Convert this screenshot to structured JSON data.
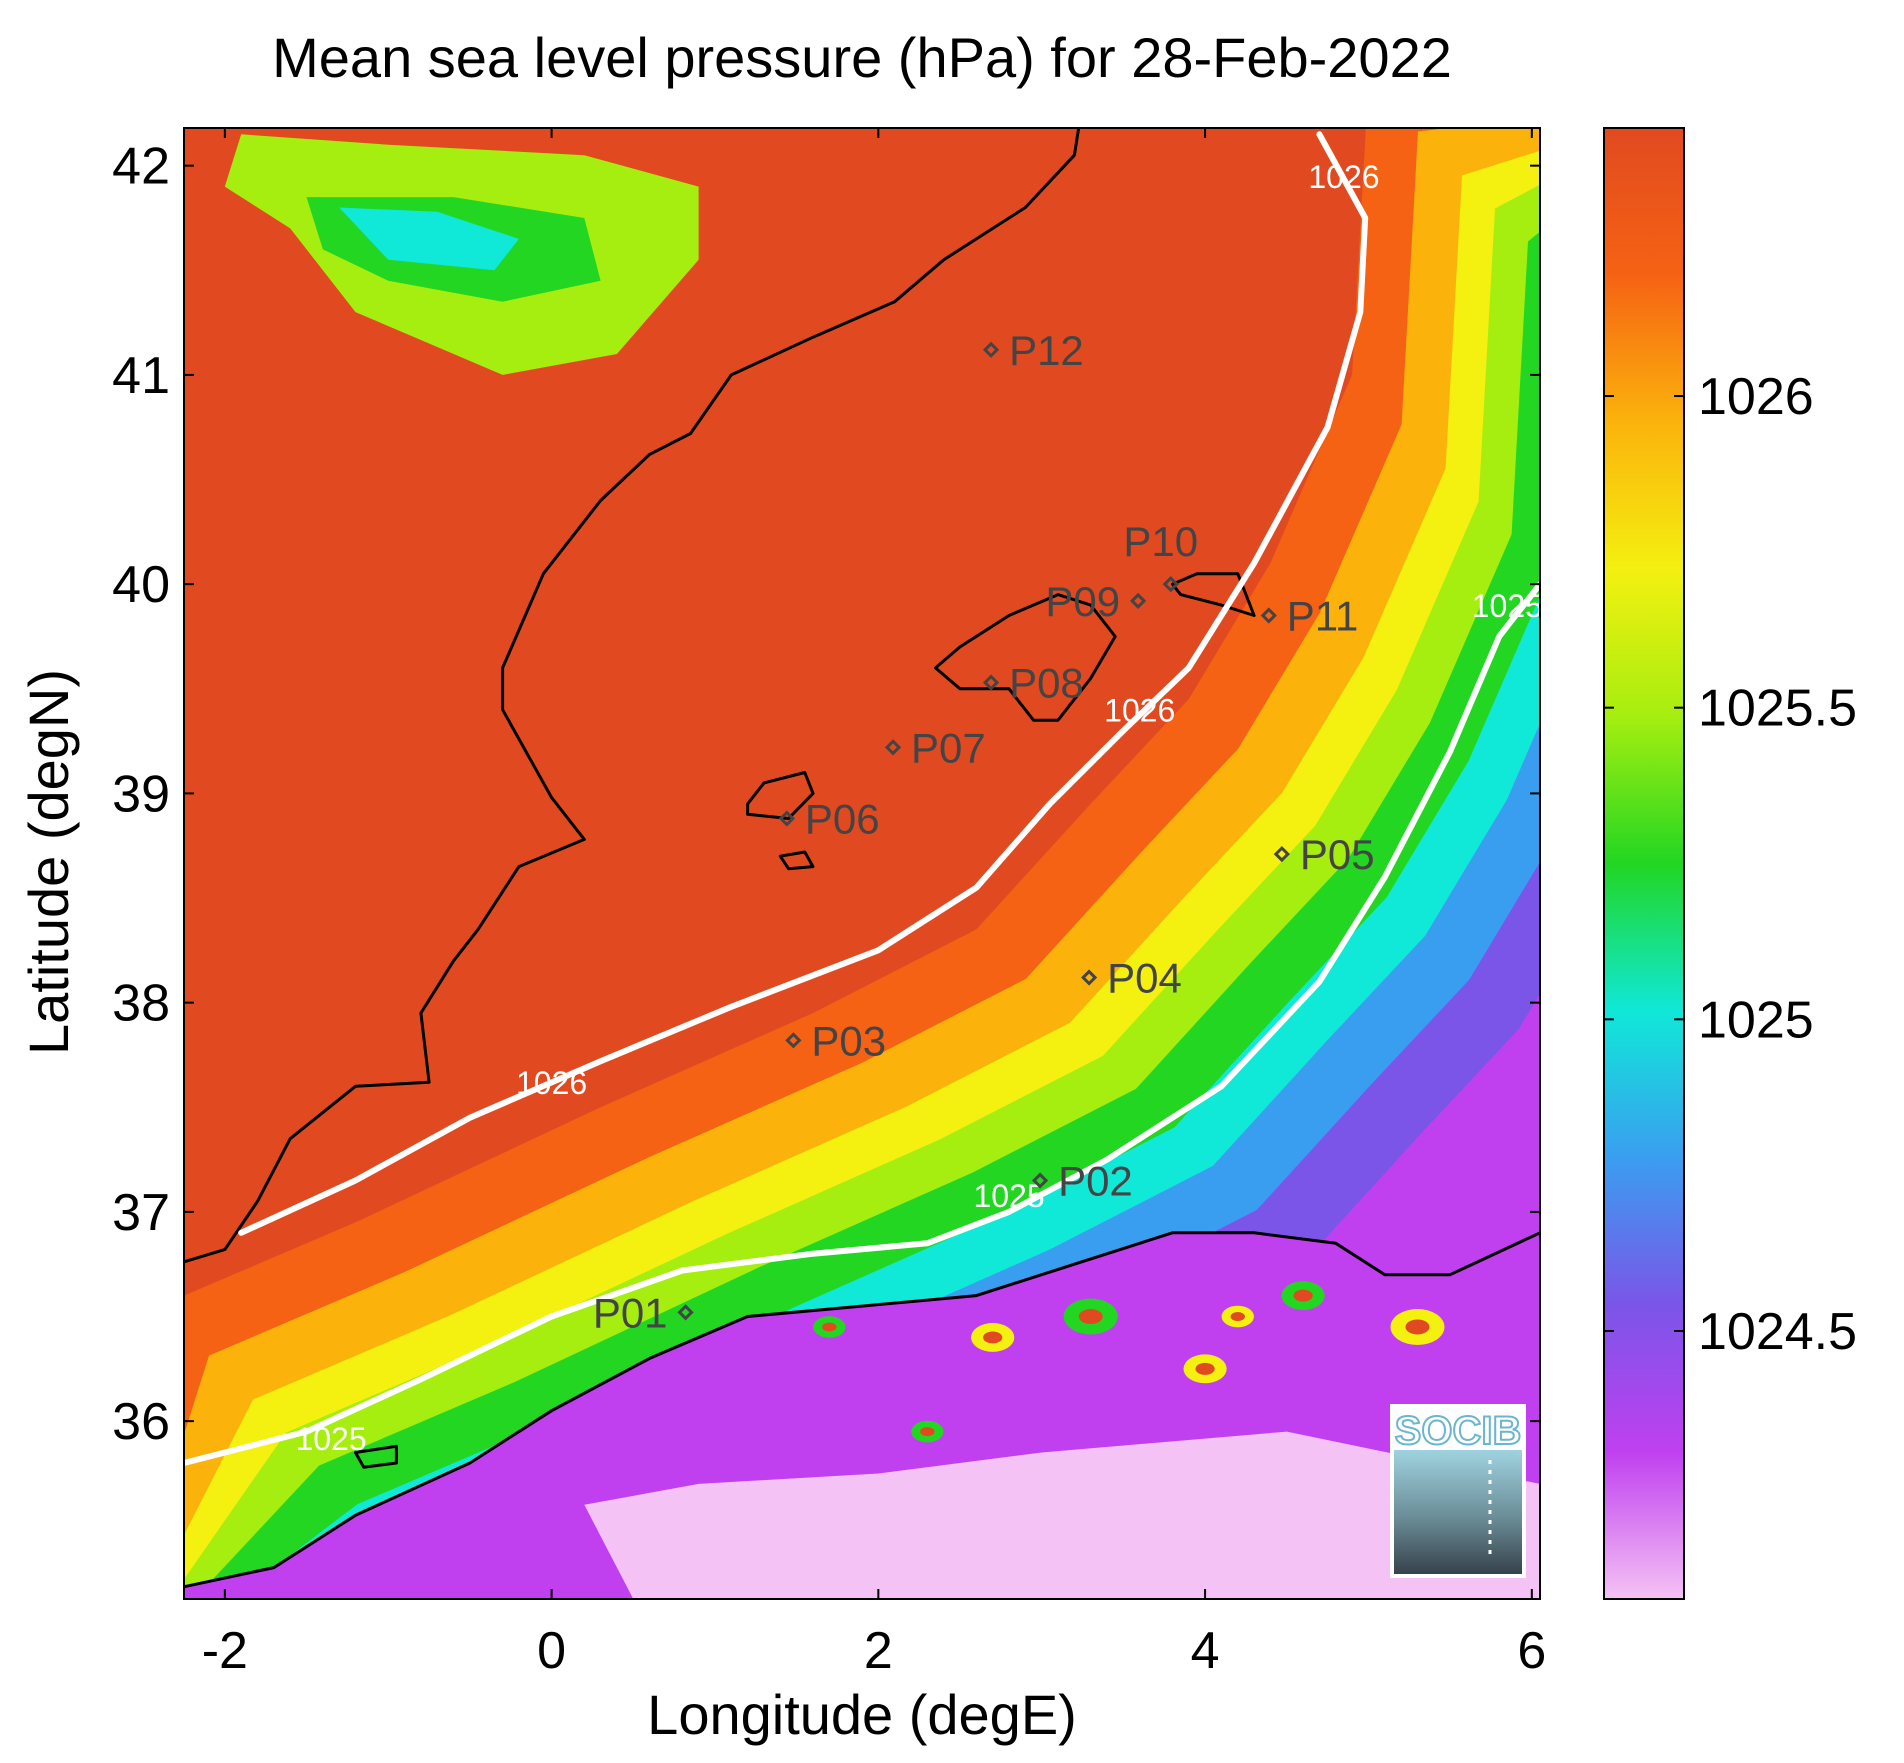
{
  "chart_data": {
    "type": "heatmap",
    "title": "Mean sea level pressure (hPa) for 28-Feb-2022",
    "xlabel": "Longitude (degE)",
    "ylabel": "Latitude (degN)",
    "xlim": [
      -2.25,
      6.05
    ],
    "ylim": [
      35.15,
      42.18
    ],
    "x_ticks": [
      -2,
      0,
      2,
      4,
      6
    ],
    "x_tick_labels": [
      "-2",
      "0",
      "2",
      "4",
      "6"
    ],
    "y_ticks": [
      36,
      37,
      38,
      39,
      40,
      41,
      42
    ],
    "y_tick_labels": [
      "36",
      "37",
      "38",
      "39",
      "40",
      "41",
      "42"
    ],
    "colorbar": {
      "range": [
        1024.07,
        1026.43
      ],
      "ticks": [
        1024.5,
        1025,
        1025.5,
        1026
      ],
      "tick_labels": [
        "1024.5",
        "1025",
        "1025.5",
        "1026"
      ],
      "colors": [
        "#f4c2f4",
        "#c040f0",
        "#7b55e8",
        "#3a9ef0",
        "#10e8d8",
        "#22d622",
        "#a6ee10",
        "#f4f010",
        "#fbb30c",
        "#f66214",
        "#e14a20"
      ]
    },
    "contours": [
      {
        "level": 1026,
        "label": "1026",
        "color": "#ffffff",
        "points": [
          [
            -1.9,
            36.9
          ],
          [
            -1.2,
            37.15
          ],
          [
            -0.5,
            37.45
          ],
          [
            0.3,
            37.72
          ],
          [
            1.1,
            37.98
          ],
          [
            2.0,
            38.25
          ],
          [
            2.6,
            38.55
          ],
          [
            3.05,
            38.95
          ],
          [
            3.5,
            39.3
          ],
          [
            3.9,
            39.6
          ],
          [
            4.3,
            40.1
          ],
          [
            4.75,
            40.75
          ],
          [
            4.95,
            41.3
          ],
          [
            4.98,
            41.75
          ],
          [
            4.7,
            42.15
          ]
        ],
        "labels_at": [
          [
            0.0,
            37.62
          ],
          [
            3.6,
            39.4
          ],
          [
            4.85,
            41.95
          ]
        ]
      },
      {
        "level": 1025,
        "label": "1025",
        "color": "#ffffff",
        "points": [
          [
            -2.25,
            35.8
          ],
          [
            -1.5,
            35.95
          ],
          [
            -0.8,
            36.2
          ],
          [
            0.0,
            36.5
          ],
          [
            0.8,
            36.72
          ],
          [
            1.6,
            36.8
          ],
          [
            2.3,
            36.85
          ],
          [
            2.8,
            37.0
          ],
          [
            3.4,
            37.25
          ],
          [
            4.1,
            37.6
          ],
          [
            4.7,
            38.1
          ],
          [
            5.1,
            38.6
          ],
          [
            5.5,
            39.2
          ],
          [
            5.8,
            39.75
          ],
          [
            6.05,
            40.0
          ]
        ],
        "labels_at": [
          [
            -1.35,
            35.92
          ],
          [
            2.8,
            37.08
          ],
          [
            5.85,
            39.9
          ]
        ]
      }
    ],
    "stations": [
      {
        "name": "P01",
        "lon": 0.82,
        "lat": 36.52,
        "label_side": "left"
      },
      {
        "name": "P02",
        "lon": 2.99,
        "lat": 37.15,
        "label_side": "right"
      },
      {
        "name": "P03",
        "lon": 1.48,
        "lat": 37.82,
        "label_side": "right"
      },
      {
        "name": "P04",
        "lon": 3.29,
        "lat": 38.12,
        "label_side": "right"
      },
      {
        "name": "P05",
        "lon": 4.47,
        "lat": 38.71,
        "label_side": "right"
      },
      {
        "name": "P06",
        "lon": 1.44,
        "lat": 38.88,
        "label_side": "right"
      },
      {
        "name": "P07",
        "lon": 2.09,
        "lat": 39.22,
        "label_side": "right"
      },
      {
        "name": "P08",
        "lon": 2.69,
        "lat": 39.53,
        "label_side": "right"
      },
      {
        "name": "P09",
        "lon": 3.59,
        "lat": 39.92,
        "label_side": "left"
      },
      {
        "name": "P10",
        "lon": 3.79,
        "lat": 40.0,
        "label_side": "above"
      },
      {
        "name": "P11",
        "lon": 4.39,
        "lat": 39.85,
        "label_side": "right"
      },
      {
        "name": "P12",
        "lon": 2.69,
        "lat": 41.12,
        "label_side": "right"
      }
    ],
    "grid": false
  },
  "logo": {
    "text": "SOCIB"
  }
}
